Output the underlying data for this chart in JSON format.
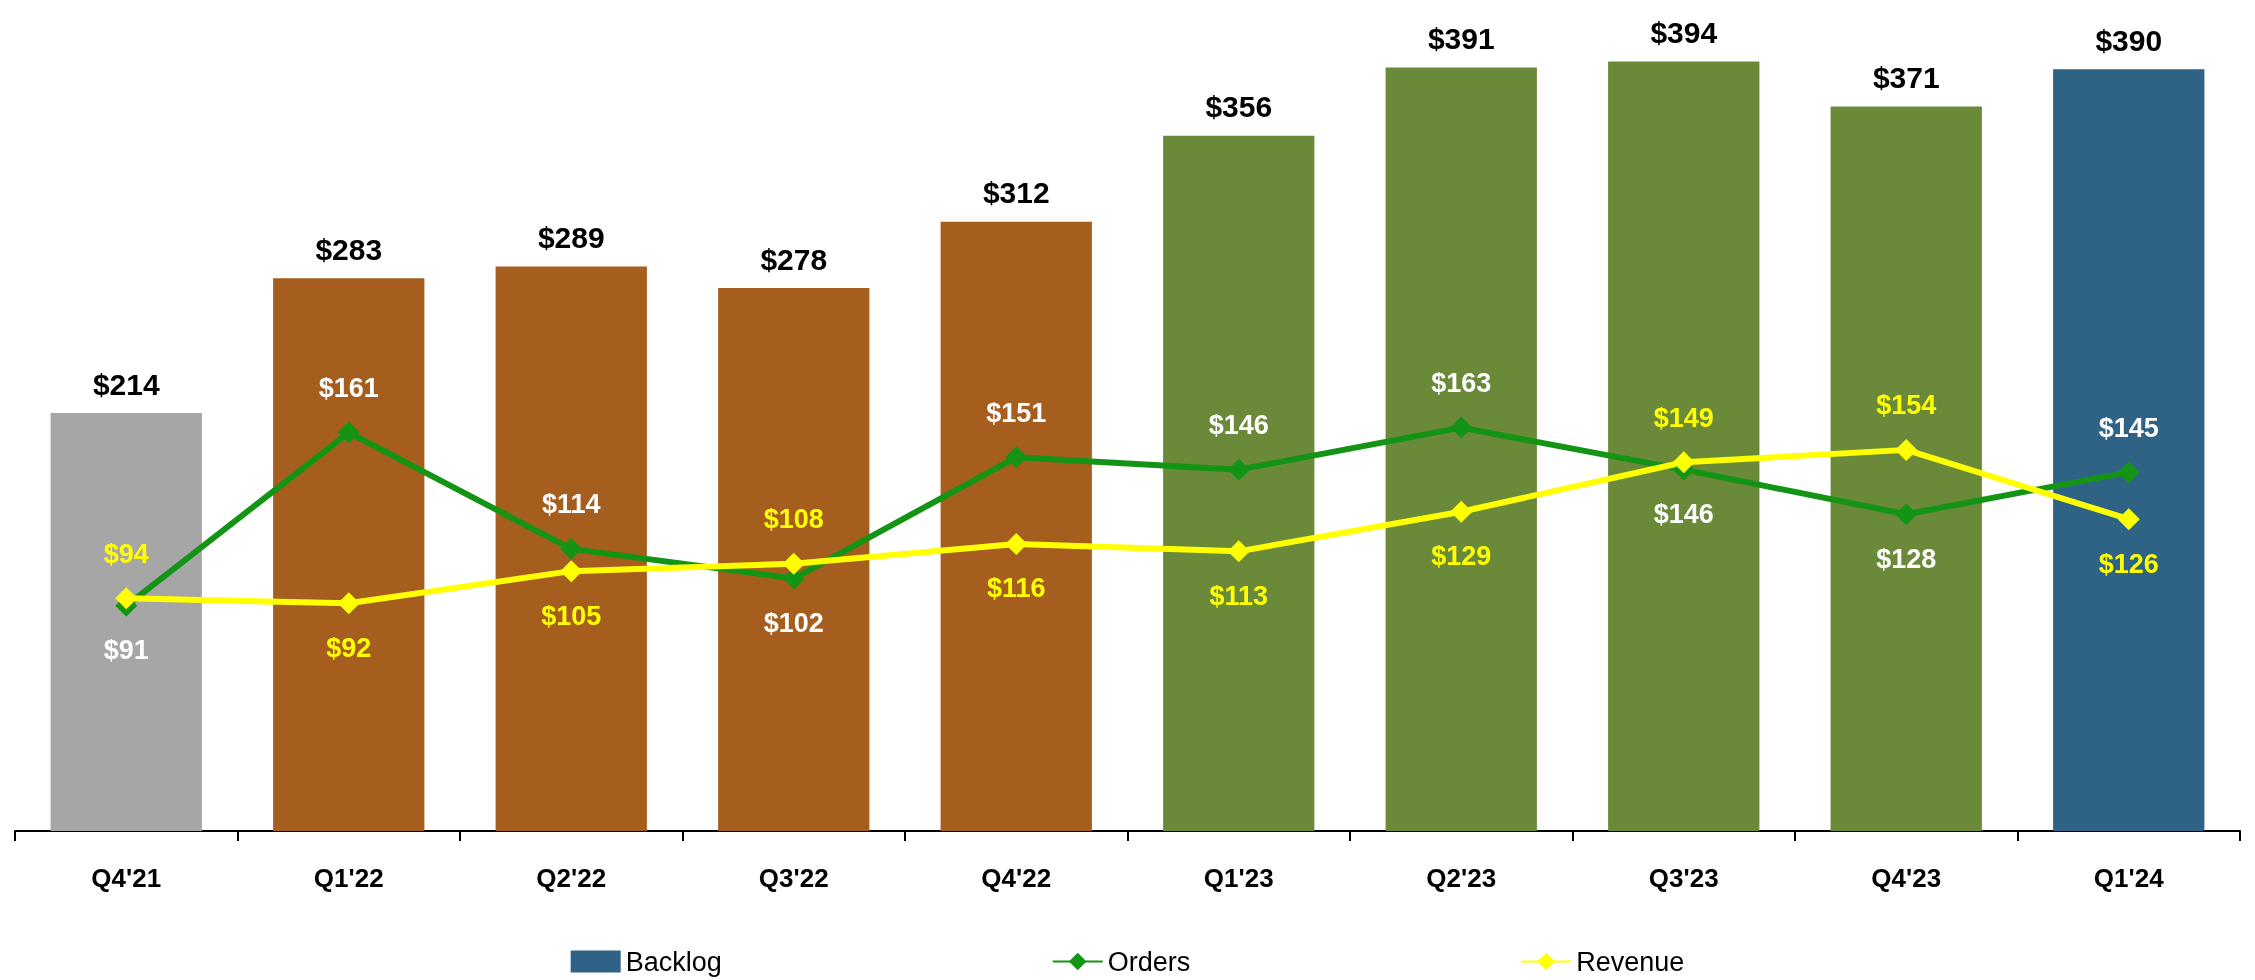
{
  "chart_data": {
    "type": "bar",
    "categories": [
      "Q4'21",
      "Q1'22",
      "Q2'22",
      "Q3'22",
      "Q4'22",
      "Q1'23",
      "Q2'23",
      "Q3'23",
      "Q4'23",
      "Q1'24"
    ],
    "series": [
      {
        "name": "Backlog",
        "color": "#2e6386",
        "colors": [
          "#a6a6a6",
          "#a65e1e",
          "#a65e1e",
          "#a65e1e",
          "#a65e1e",
          "#6a8a3a",
          "#6a8a3a",
          "#6a8a3a",
          "#6a8a3a",
          "#2e6386"
        ],
        "values": [
          214,
          283,
          289,
          278,
          312,
          356,
          391,
          394,
          371,
          390
        ],
        "value_labels": [
          "$214",
          "$283",
          "$289",
          "$278",
          "$312",
          "$356",
          "$391",
          "$394",
          "$371",
          "$390"
        ]
      },
      {
        "name": "Orders",
        "type": "line",
        "axis": "y2",
        "color": "#149414",
        "marker": "diamond",
        "values": [
          91,
          161,
          114,
          102,
          151,
          146,
          163,
          146,
          128,
          145
        ],
        "value_labels": [
          "$91",
          "$161",
          "$114",
          "$102",
          "$151",
          "$146",
          "$163",
          "$146",
          "$128",
          "$145"
        ]
      },
      {
        "name": "Revenue",
        "type": "line",
        "axis": "y2",
        "color": "#ffff00",
        "marker": "diamond",
        "values": [
          94,
          92,
          105,
          108,
          116,
          113,
          129,
          149,
          154,
          126
        ],
        "value_labels": [
          "$94",
          "$92",
          "$105",
          "$108",
          "$116",
          "$113",
          "$129",
          "$149",
          "$154",
          "$126"
        ]
      }
    ],
    "tick_labels": "x",
    "grid": false,
    "legend": "bottom"
  }
}
